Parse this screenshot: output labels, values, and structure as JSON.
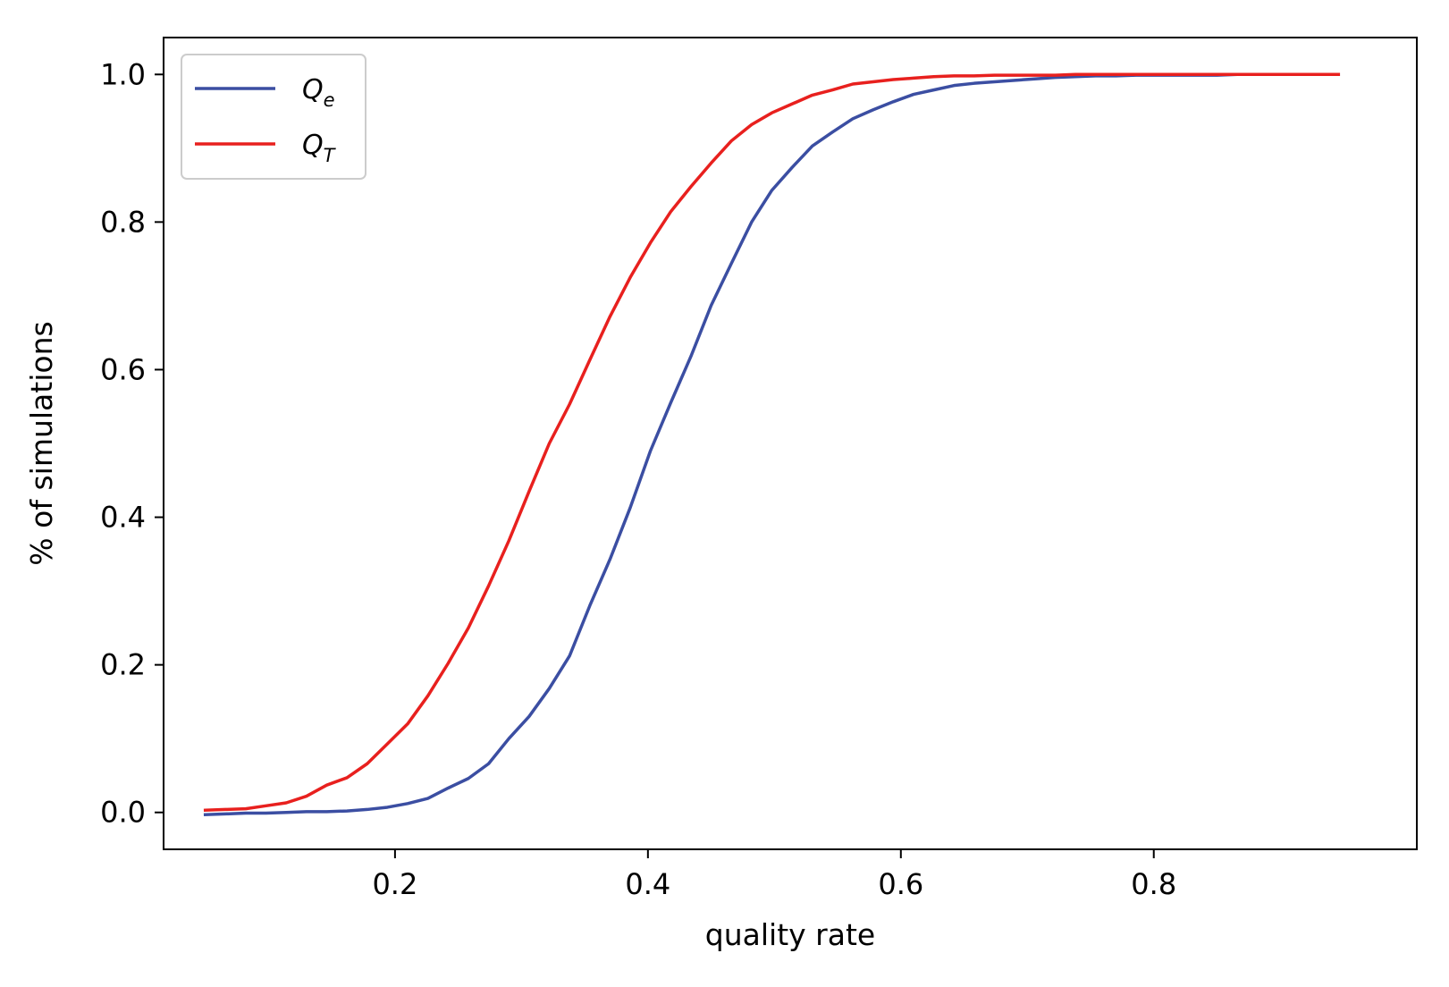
{
  "chart_data": {
    "type": "line",
    "title": "",
    "xlabel": "quality rate",
    "ylabel": "% of simulations",
    "xlim": [
      0.017,
      1.008
    ],
    "ylim": [
      -0.05,
      1.05
    ],
    "xticks": [
      0.2,
      0.4,
      0.6,
      0.8
    ],
    "xtick_labels": [
      "0.2",
      "0.4",
      "0.6",
      "0.8"
    ],
    "yticks": [
      0.0,
      0.2,
      0.4,
      0.6,
      0.8,
      1.0
    ],
    "ytick_labels": [
      "0.0",
      "0.2",
      "0.4",
      "0.6",
      "0.8",
      "1.0"
    ],
    "grid": false,
    "legend_position": "top-left",
    "series": [
      {
        "name": "Q_e",
        "legend_main": "Q",
        "legend_sub": "e",
        "color": "#3b4ea2",
        "x": [
          0.05,
          0.066,
          0.082,
          0.098,
          0.114,
          0.13,
          0.146,
          0.162,
          0.178,
          0.194,
          0.21,
          0.226,
          0.242,
          0.258,
          0.274,
          0.29,
          0.306,
          0.322,
          0.338,
          0.354,
          0.37,
          0.386,
          0.402,
          0.418,
          0.434,
          0.45,
          0.466,
          0.482,
          0.498,
          0.514,
          0.53,
          0.546,
          0.562,
          0.578,
          0.594,
          0.61,
          0.626,
          0.642,
          0.658,
          0.674,
          0.69,
          0.706,
          0.722,
          0.738,
          0.754,
          0.77,
          0.786,
          0.802,
          0.818,
          0.834,
          0.85,
          0.866,
          0.882,
          0.898,
          0.914,
          0.93,
          0.946
        ],
        "y": [
          -0.003,
          -0.002,
          -0.001,
          -0.001,
          0.0,
          0.001,
          0.001,
          0.002,
          0.004,
          0.007,
          0.012,
          0.019,
          0.033,
          0.046,
          0.066,
          0.1,
          0.13,
          0.168,
          0.212,
          0.28,
          0.343,
          0.413,
          0.49,
          0.555,
          0.618,
          0.687,
          0.744,
          0.8,
          0.843,
          0.874,
          0.903,
          0.922,
          0.94,
          0.952,
          0.963,
          0.973,
          0.979,
          0.985,
          0.988,
          0.99,
          0.992,
          0.994,
          0.996,
          0.997,
          0.998,
          0.998,
          0.999,
          0.999,
          0.999,
          0.999,
          0.999,
          1.0,
          1.0,
          1.0,
          1.0,
          1.0,
          1.0
        ]
      },
      {
        "name": "Q_T",
        "legend_main": "Q",
        "legend_sub": "T",
        "color": "#e8201e",
        "x": [
          0.05,
          0.066,
          0.082,
          0.098,
          0.114,
          0.13,
          0.146,
          0.162,
          0.178,
          0.194,
          0.21,
          0.226,
          0.242,
          0.258,
          0.274,
          0.29,
          0.306,
          0.322,
          0.338,
          0.354,
          0.37,
          0.386,
          0.402,
          0.418,
          0.434,
          0.45,
          0.466,
          0.482,
          0.498,
          0.514,
          0.53,
          0.546,
          0.562,
          0.578,
          0.594,
          0.61,
          0.626,
          0.642,
          0.658,
          0.674,
          0.69,
          0.706,
          0.722,
          0.738,
          0.754,
          0.77,
          0.786,
          0.802,
          0.818,
          0.834,
          0.85,
          0.866,
          0.882,
          0.898,
          0.914,
          0.93,
          0.946
        ],
        "y": [
          0.003,
          0.004,
          0.005,
          0.009,
          0.013,
          0.022,
          0.037,
          0.047,
          0.066,
          0.093,
          0.12,
          0.158,
          0.202,
          0.25,
          0.307,
          0.368,
          0.435,
          0.5,
          0.553,
          0.613,
          0.672,
          0.725,
          0.772,
          0.814,
          0.848,
          0.88,
          0.91,
          0.932,
          0.948,
          0.96,
          0.972,
          0.979,
          0.987,
          0.99,
          0.993,
          0.995,
          0.997,
          0.998,
          0.998,
          0.999,
          0.999,
          0.999,
          0.999,
          1.0,
          1.0,
          1.0,
          1.0,
          1.0,
          1.0,
          1.0,
          1.0,
          1.0,
          1.0,
          1.0,
          1.0,
          1.0,
          1.0
        ]
      }
    ]
  }
}
